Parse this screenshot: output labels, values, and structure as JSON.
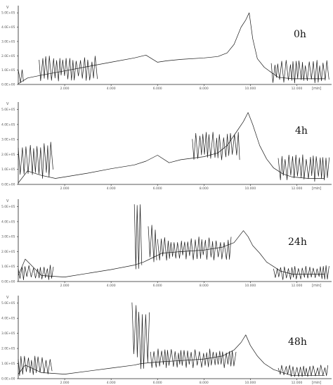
{
  "chart_data": [
    {
      "type": "line",
      "label": "0h",
      "ylabel": "V",
      "xunit": "[min]",
      "x_ticks": [
        "2.000",
        "4.000",
        "6.000",
        "8.000",
        "10.000",
        "12.000"
      ],
      "y_ticks": [
        "5.0E+05",
        "4.0E+05",
        "3.0E+05",
        "2.0E+05",
        "1.0E+05",
        "0.0E+00"
      ],
      "xlim": [
        0,
        13.5
      ],
      "ylim": [
        0,
        5.5
      ],
      "x": [
        0.0,
        0.4,
        1.0,
        2.0,
        3.0,
        4.0,
        5.0,
        5.5,
        6.0,
        6.4,
        7.0,
        8.0,
        8.6,
        9.0,
        9.3,
        9.6,
        9.8,
        9.95,
        10.1,
        10.3,
        10.6,
        10.85,
        11.2,
        11.8,
        12.5,
        13.2
      ],
      "y": [
        0.05,
        0.45,
        0.65,
        0.95,
        1.25,
        1.55,
        1.85,
        2.05,
        1.55,
        1.65,
        1.75,
        1.85,
        1.95,
        2.2,
        2.8,
        4.0,
        4.5,
        5.0,
        3.2,
        1.8,
        1.2,
        0.9,
        0.5,
        0.4,
        0.4,
        0.4
      ],
      "noise_segments": [
        {
          "x": [
            0.0,
            0.25
          ],
          "ymin": 0.1,
          "ymax": 1.3
        },
        {
          "x": [
            0.9,
            3.5
          ],
          "ymin": 0.2,
          "ymax": 2.0
        },
        {
          "x": [
            10.9,
            13.4
          ],
          "ymin": 0.1,
          "ymax": 1.7
        }
      ]
    },
    {
      "type": "line",
      "label": "4h",
      "ylabel": "V",
      "xunit": "[min]",
      "x_ticks": [
        "2.000",
        "4.000",
        "6.000",
        "8.000",
        "10.000",
        "12.000"
      ],
      "y_ticks": [
        "5.0E+05",
        "4.0E+05",
        "3.0E+05",
        "2.0E+05",
        "1.0E+05",
        "0.0E+00"
      ],
      "xlim": [
        0,
        13.5
      ],
      "ylim": [
        0,
        5.5
      ],
      "x": [
        0.0,
        0.4,
        1.0,
        1.6,
        2.0,
        3.0,
        4.0,
        5.0,
        5.5,
        6.0,
        6.5,
        7.0,
        8.0,
        8.6,
        9.0,
        9.4,
        9.7,
        9.9,
        10.1,
        10.4,
        10.7,
        11.0,
        11.4,
        11.8,
        12.5,
        13.2
      ],
      "y": [
        0.1,
        0.9,
        0.6,
        0.4,
        0.5,
        0.75,
        1.05,
        1.3,
        1.55,
        1.95,
        1.45,
        1.65,
        1.85,
        2.1,
        2.6,
        3.5,
        4.2,
        4.8,
        4.0,
        2.6,
        1.7,
        1.1,
        0.7,
        0.5,
        0.4,
        0.4
      ],
      "noise_segments": [
        {
          "x": [
            0.0,
            1.5
          ],
          "ymin": 0.4,
          "ymax": 3.0
        },
        {
          "x": [
            7.5,
            9.6
          ],
          "ymin": 1.6,
          "ymax": 3.5
        },
        {
          "x": [
            11.2,
            13.4
          ],
          "ymin": 0.2,
          "ymax": 2.0
        }
      ]
    },
    {
      "type": "line",
      "label": "24h",
      "ylabel": "V",
      "xunit": "[min]",
      "x_ticks": [
        "2.000",
        "4.000",
        "6.000",
        "8.000",
        "10.000",
        "12.000"
      ],
      "y_ticks": [
        "5.0E+05",
        "4.0E+05",
        "3.0E+05",
        "2.0E+05",
        "1.0E+05",
        "0.0E+00"
      ],
      "xlim": [
        0,
        13.5
      ],
      "ylim": [
        0,
        5.5
      ],
      "x": [
        0.0,
        0.3,
        1.0,
        2.0,
        3.0,
        4.0,
        5.0,
        5.4,
        5.8,
        6.2,
        7.0,
        8.0,
        8.8,
        9.3,
        9.7,
        9.9,
        10.1,
        10.4,
        10.7,
        11.0,
        11.3,
        11.8,
        12.5,
        13.2
      ],
      "y": [
        0.4,
        1.5,
        0.4,
        0.3,
        0.55,
        0.8,
        1.1,
        1.3,
        1.6,
        1.9,
        2.0,
        2.1,
        2.3,
        2.6,
        3.4,
        3.0,
        2.4,
        1.9,
        1.3,
        1.0,
        0.7,
        0.5,
        0.5,
        0.5
      ],
      "noise_segments": [
        {
          "x": [
            0.0,
            1.6
          ],
          "ymin": 0.1,
          "ymax": 1.1
        },
        {
          "x": [
            5.0,
            5.4
          ],
          "ymin": 0.8,
          "ymax": 5.2
        },
        {
          "x": [
            5.6,
            6.0
          ],
          "ymin": 1.0,
          "ymax": 4.0
        },
        {
          "x": [
            6.0,
            9.2
          ],
          "ymin": 1.4,
          "ymax": 3.0
        },
        {
          "x": [
            11.0,
            13.4
          ],
          "ymin": 0.1,
          "ymax": 1.1
        }
      ]
    },
    {
      "type": "line",
      "label": "48h",
      "ylabel": "V",
      "xunit": "[min]",
      "x_ticks": [
        "2.000",
        "4.000",
        "6.000",
        "8.000",
        "10.000",
        "12.000"
      ],
      "y_ticks": [
        "5.0E+05",
        "4.0E+05",
        "3.0E+05",
        "2.0E+05",
        "1.0E+05",
        "0.0E+00"
      ],
      "xlim": [
        0,
        13.5
      ],
      "ylim": [
        0,
        5.5
      ],
      "x": [
        0.0,
        0.3,
        1.0,
        2.0,
        3.0,
        4.0,
        5.0,
        5.3,
        6.0,
        7.0,
        8.0,
        8.8,
        9.3,
        9.6,
        9.8,
        10.0,
        10.3,
        10.6,
        11.0,
        11.4,
        11.8,
        12.5,
        13.2
      ],
      "y": [
        0.3,
        0.9,
        0.4,
        0.3,
        0.5,
        0.7,
        0.9,
        1.0,
        1.1,
        1.2,
        1.3,
        1.5,
        1.9,
        2.4,
        2.9,
        2.2,
        1.5,
        1.0,
        0.6,
        0.4,
        0.2,
        0.2,
        0.2
      ],
      "noise_segments": [
        {
          "x": [
            0.0,
            1.5
          ],
          "ymin": 0.2,
          "ymax": 1.5
        },
        {
          "x": [
            4.9,
            5.7
          ],
          "ymin": 0.6,
          "ymax": 5.1
        },
        {
          "x": [
            5.7,
            9.4
          ],
          "ymin": 0.7,
          "ymax": 2.0
        },
        {
          "x": [
            11.2,
            13.4
          ],
          "ymin": 0.1,
          "ymax": 0.9
        }
      ]
    }
  ]
}
